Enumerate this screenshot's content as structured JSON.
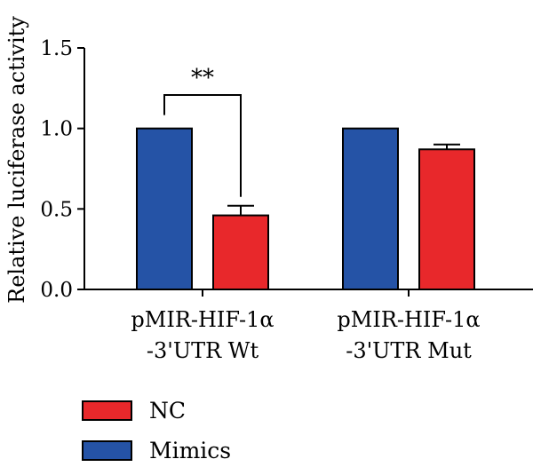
{
  "chart_data": {
    "type": "bar",
    "ylabel": "Relative luciferase activity",
    "ylim": [
      0,
      1.5
    ],
    "yticks": [
      0.0,
      0.5,
      1.0,
      1.5
    ],
    "ytick_labels": [
      "0.0",
      "0.5",
      "1.0",
      "1.5"
    ],
    "categories": [
      [
        "pMIR-HIF-1α",
        "-3'UTR Wt"
      ],
      [
        "pMIR-HIF-1α",
        "-3'UTR Mut"
      ]
    ],
    "series": [
      {
        "name": "Mimics",
        "color": "#2553a6",
        "values": [
          1.0,
          1.0
        ],
        "errors": [
          0,
          0
        ]
      },
      {
        "name": "NC",
        "color": "#e8282b",
        "values": [
          0.46,
          0.87
        ],
        "errors": [
          0.06,
          0.03
        ]
      }
    ],
    "legend_order": [
      "NC",
      "Mimics"
    ],
    "legend_position": "bottom-left",
    "annotations": [
      {
        "text": "**",
        "group": 0,
        "between": [
          "Mimics",
          "NC"
        ]
      }
    ]
  }
}
